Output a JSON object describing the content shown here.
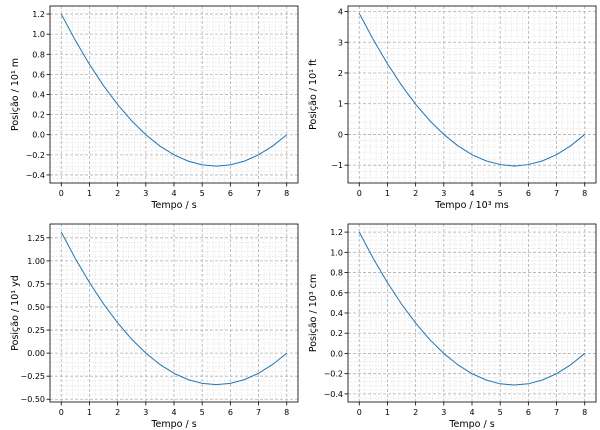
{
  "figure": {
    "background": "#ffffff",
    "line_color": "#1f77b4",
    "grid_major_color": "#b0b0b0",
    "grid_minor_color": "#dcdcdc"
  },
  "chart_data": [
    {
      "type": "line",
      "xlabel": "Tempo /  s",
      "ylabel": "Posição / 10¹ m",
      "xlim": [
        -0.4,
        8.4
      ],
      "ylim": [
        -0.48,
        1.28
      ],
      "xticks": [
        0,
        1,
        2,
        3,
        4,
        5,
        6,
        7,
        8
      ],
      "xtick_labels": [
        "0",
        "1",
        "2",
        "3",
        "4",
        "5",
        "6",
        "7",
        "8"
      ],
      "yticks": [
        -0.4,
        -0.2,
        0.0,
        0.2,
        0.4,
        0.6,
        0.8,
        1.0,
        1.2
      ],
      "ytick_labels": [
        "−0.4",
        "−0.2",
        "0.0",
        "0.2",
        "0.4",
        "0.6",
        "0.8",
        "1.0",
        "1.2"
      ],
      "grid": true,
      "series": [
        {
          "x": [
            0,
            0.5,
            1,
            1.5,
            2,
            2.5,
            3,
            3.5,
            4,
            4.5,
            5,
            5.5,
            6,
            6.5,
            7,
            7.5,
            8
          ],
          "y": [
            1.2,
            0.9375,
            0.7,
            0.4875,
            0.3,
            0.1375,
            0.0,
            -0.1125,
            -0.2,
            -0.2625,
            -0.3,
            -0.3125,
            -0.3,
            -0.2625,
            -0.2,
            -0.1125,
            0.0
          ]
        }
      ]
    },
    {
      "type": "line",
      "xlabel": "Tempo / 10³ ms",
      "ylabel": "Posição / 10¹ ft",
      "xlim": [
        -0.4,
        8.4
      ],
      "ylim": [
        -1.58,
        4.18
      ],
      "xticks": [
        0,
        1,
        2,
        3,
        4,
        5,
        6,
        7,
        8
      ],
      "xtick_labels": [
        "0",
        "1",
        "2",
        "3",
        "4",
        "5",
        "6",
        "7",
        "8"
      ],
      "yticks": [
        -1,
        0,
        1,
        2,
        3,
        4
      ],
      "ytick_labels": [
        "−1",
        "0",
        "1",
        "2",
        "3",
        "4"
      ],
      "grid": true,
      "series": [
        {
          "x": [
            0,
            0.5,
            1,
            1.5,
            2,
            2.5,
            3,
            3.5,
            4,
            4.5,
            5,
            5.5,
            6,
            6.5,
            7,
            7.5,
            8
          ],
          "y": [
            3.94,
            3.08,
            2.3,
            1.6,
            0.98,
            0.45,
            0.0,
            -0.37,
            -0.66,
            -0.86,
            -0.98,
            -1.03,
            -0.98,
            -0.86,
            -0.66,
            -0.37,
            0.0
          ]
        }
      ]
    },
    {
      "type": "line",
      "xlabel": "Tempo /  s",
      "ylabel": "Posição / 10¹ yd",
      "xlim": [
        -0.4,
        8.4
      ],
      "ylim": [
        -0.53,
        1.4
      ],
      "xticks": [
        0,
        1,
        2,
        3,
        4,
        5,
        6,
        7,
        8
      ],
      "xtick_labels": [
        "0",
        "1",
        "2",
        "3",
        "4",
        "5",
        "6",
        "7",
        "8"
      ],
      "yticks": [
        -0.5,
        -0.25,
        0.0,
        0.25,
        0.5,
        0.75,
        1.0,
        1.25
      ],
      "ytick_labels": [
        "−0.50",
        "−0.25",
        "0.00",
        "0.25",
        "0.50",
        "0.75",
        "1.00",
        "1.25"
      ],
      "grid": true,
      "series": [
        {
          "x": [
            0,
            0.5,
            1,
            1.5,
            2,
            2.5,
            3,
            3.5,
            4,
            4.5,
            5,
            5.5,
            6,
            6.5,
            7,
            7.5,
            8
          ],
          "y": [
            1.312,
            1.025,
            0.766,
            0.533,
            0.328,
            0.15,
            0.0,
            -0.123,
            -0.219,
            -0.287,
            -0.328,
            -0.342,
            -0.328,
            -0.287,
            -0.219,
            -0.123,
            0.0
          ]
        }
      ]
    },
    {
      "type": "line",
      "xlabel": "Tempo /  s",
      "ylabel": "Posição / 10³ cm",
      "xlim": [
        -0.4,
        8.4
      ],
      "ylim": [
        -0.48,
        1.28
      ],
      "xticks": [
        0,
        1,
        2,
        3,
        4,
        5,
        6,
        7,
        8
      ],
      "xtick_labels": [
        "0",
        "1",
        "2",
        "3",
        "4",
        "5",
        "6",
        "7",
        "8"
      ],
      "yticks": [
        -0.4,
        -0.2,
        0.0,
        0.2,
        0.4,
        0.6,
        0.8,
        1.0,
        1.2
      ],
      "ytick_labels": [
        "−0.4",
        "−0.2",
        "0.0",
        "0.2",
        "0.4",
        "0.6",
        "0.8",
        "1.0",
        "1.2"
      ],
      "grid": true,
      "series": [
        {
          "x": [
            0,
            0.5,
            1,
            1.5,
            2,
            2.5,
            3,
            3.5,
            4,
            4.5,
            5,
            5.5,
            6,
            6.5,
            7,
            7.5,
            8
          ],
          "y": [
            1.2,
            0.9375,
            0.7,
            0.4875,
            0.3,
            0.1375,
            0.0,
            -0.1125,
            -0.2,
            -0.2625,
            -0.3,
            -0.3125,
            -0.3,
            -0.2625,
            -0.2,
            -0.1125,
            0.0
          ]
        }
      ]
    }
  ]
}
